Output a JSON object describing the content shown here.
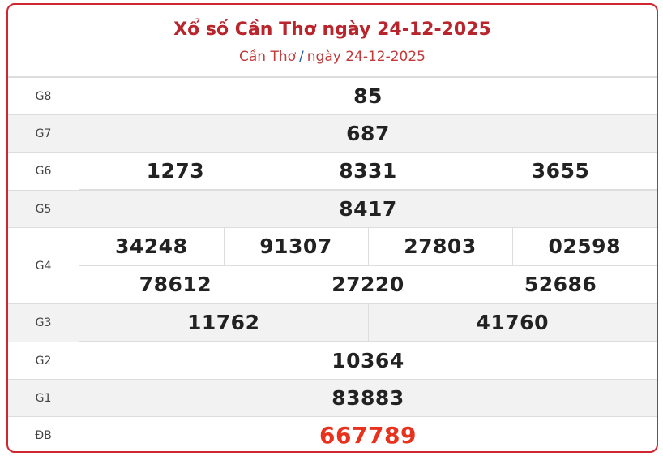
{
  "header": {
    "title": "Xổ số Cần Thơ ngày 24-12-2025",
    "breadcrumb": {
      "province": "Cần Thơ",
      "separator": "/",
      "date": "ngày 24-12-2025"
    }
  },
  "colors": {
    "accent": "#b8252d",
    "special_prize": "#e8321e",
    "border": "#d0262f"
  },
  "prizes": {
    "g8": {
      "label": "G8",
      "numbers": [
        "85"
      ]
    },
    "g7": {
      "label": "G7",
      "numbers": [
        "687"
      ]
    },
    "g6": {
      "label": "G6",
      "numbers": [
        "1273",
        "8331",
        "3655"
      ]
    },
    "g5": {
      "label": "G5",
      "numbers": [
        "8417"
      ]
    },
    "g4": {
      "label": "G4",
      "numbers": [
        "34248",
        "91307",
        "27803",
        "02598",
        "78612",
        "27220",
        "52686"
      ]
    },
    "g3": {
      "label": "G3",
      "numbers": [
        "11762",
        "41760"
      ]
    },
    "g2": {
      "label": "G2",
      "numbers": [
        "10364"
      ]
    },
    "g1": {
      "label": "G1",
      "numbers": [
        "83883"
      ]
    },
    "db": {
      "label": "ĐB",
      "numbers": [
        "667789"
      ]
    }
  }
}
